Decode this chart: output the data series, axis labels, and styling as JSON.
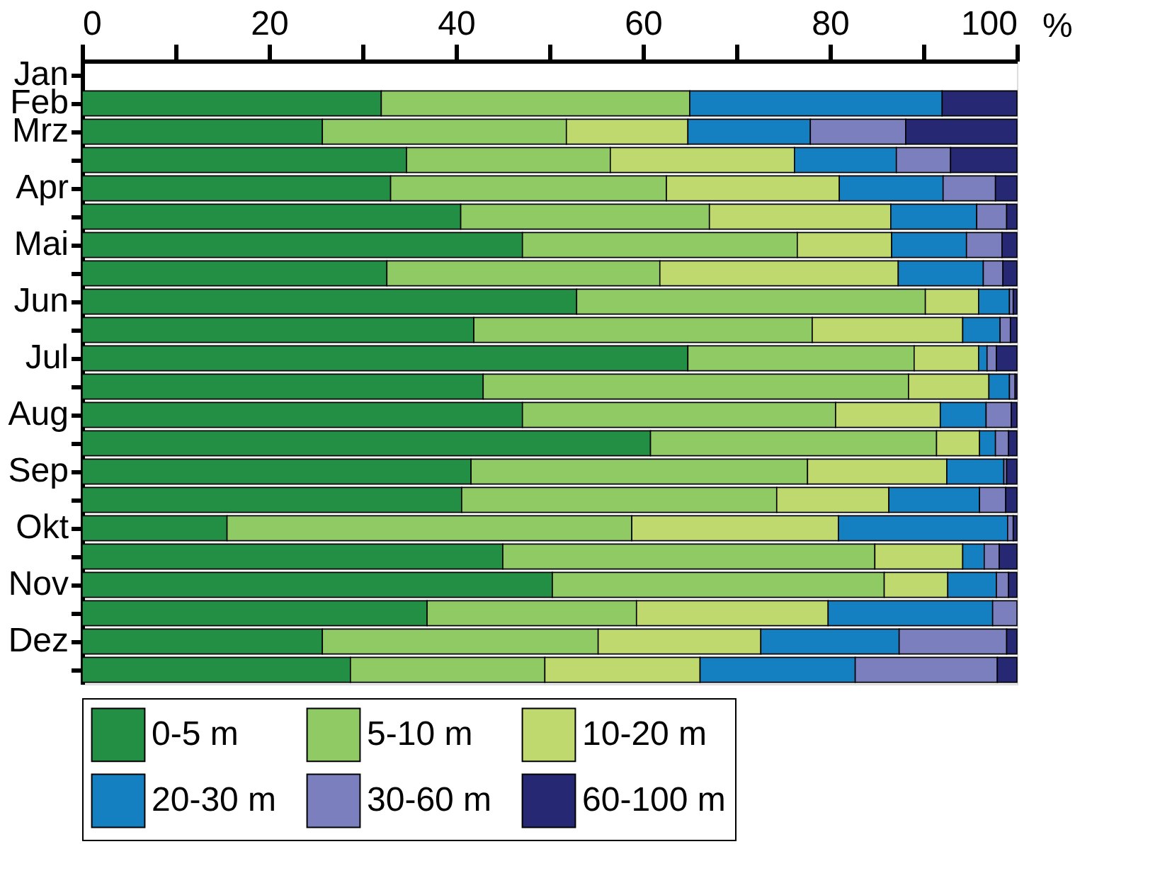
{
  "chart_data": {
    "type": "bar",
    "orientation": "horizontal",
    "stacked": true,
    "xlabel": "%",
    "categories": [
      "Jan",
      "Feb",
      "Mrz",
      null,
      "Apr",
      null,
      "Mai",
      null,
      "Jun",
      null,
      "Jul",
      null,
      "Aug",
      null,
      "Sep",
      null,
      "Okt",
      null,
      "Nov",
      null,
      "Dez",
      null
    ],
    "xlim": [
      0,
      100
    ],
    "xticks": [
      0,
      {
        "value": 10,
        "label": null
      },
      20,
      {
        "value": 30,
        "label": null
      },
      40,
      {
        "value": 50,
        "label": null
      },
      60,
      {
        "value": 70,
        "label": null
      },
      80,
      {
        "value": 90,
        "label": null
      },
      100
    ],
    "grid": false,
    "legend": "bottom",
    "series": [
      {
        "name": "0-5 m",
        "color": "#238f45",
        "values": [
          null,
          32,
          25.7,
          34.7,
          33.0,
          40.5,
          47.1,
          32.6,
          52.9,
          41.9,
          64.8,
          42.9,
          47.1,
          60.8,
          41.6,
          40.6,
          15.5,
          45.0,
          50.3,
          36.9,
          25.7,
          28.7
        ]
      },
      {
        "name": "5-10 m",
        "color": "#8fca65",
        "values": [
          null,
          33,
          26.1,
          21.8,
          29.5,
          26.6,
          29.4,
          29.2,
          37.3,
          36.2,
          24.2,
          45.5,
          33.5,
          30.6,
          36.0,
          33.7,
          43.3,
          39.8,
          35.5,
          22.4,
          29.5,
          20.8
        ]
      },
      {
        "name": "10-20 m",
        "color": "#c0d96e",
        "values": [
          null,
          0,
          13.0,
          19.7,
          18.5,
          19.4,
          10.1,
          25.5,
          5.7,
          16.1,
          6.9,
          8.6,
          11.2,
          4.6,
          14.9,
          12.0,
          22.1,
          9.4,
          6.8,
          20.5,
          17.4,
          16.6
        ]
      },
      {
        "name": "20-30 m",
        "color": "#1580c1",
        "values": [
          null,
          27,
          13.1,
          10.9,
          11.1,
          9.2,
          8.0,
          9.1,
          3.3,
          4.0,
          0.9,
          2.2,
          4.9,
          1.7,
          6.1,
          9.7,
          18.1,
          2.3,
          5.2,
          17.6,
          14.8,
          16.6
        ]
      },
      {
        "name": "30-60 m",
        "color": "#7b7fbe",
        "values": [
          null,
          0,
          10.2,
          5.8,
          5.6,
          3.2,
          3.8,
          2.1,
          0.4,
          1.1,
          1.0,
          0.6,
          2.7,
          1.4,
          0.3,
          2.8,
          0.6,
          1.6,
          1.3,
          2.6,
          11.5,
          15.2
        ]
      },
      {
        "name": "60-100 m",
        "color": "#262874",
        "values": [
          null,
          8,
          11.9,
          7.1,
          2.3,
          1.1,
          1.6,
          1.5,
          0.4,
          0.7,
          2.2,
          0.2,
          0.6,
          0.9,
          1.1,
          1.2,
          0.4,
          1.9,
          0.9,
          0,
          1.1,
          2.1
        ]
      }
    ]
  }
}
